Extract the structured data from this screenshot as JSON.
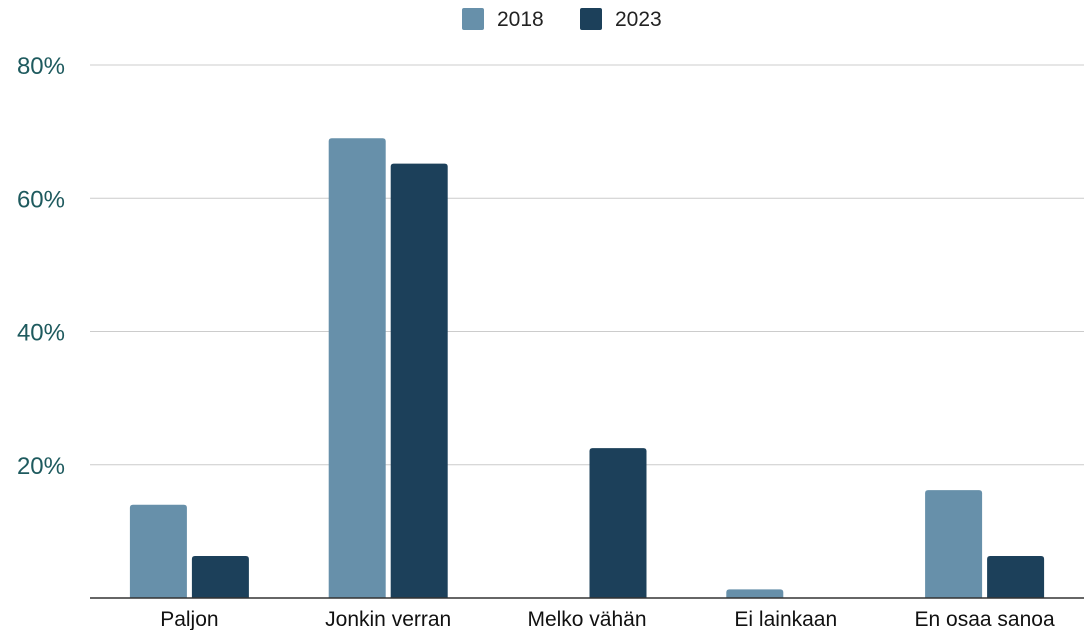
{
  "chart_data": {
    "type": "bar",
    "categories": [
      "Paljon",
      "Jonkin verran",
      "Melko vähän",
      "Ei lainkaan",
      "En osaa sanoa"
    ],
    "series": [
      {
        "name": "2018",
        "values": [
          14,
          69,
          0,
          1.3,
          16.2
        ],
        "color": "#6790aa"
      },
      {
        "name": "2023",
        "values": [
          6.3,
          65.2,
          22.5,
          0,
          6.3
        ],
        "color": "#1c405a"
      }
    ],
    "yticks": [
      "",
      "20%",
      "40%",
      "60%",
      "80%"
    ],
    "ytick_values": [
      0,
      20,
      40,
      60,
      80
    ],
    "ylim": [
      0,
      80
    ],
    "grid": true,
    "legend_position": "top-center",
    "colors": {
      "grid": "#cccccc",
      "axis": "#333333",
      "ytick_text": "#1e5a5e"
    }
  }
}
